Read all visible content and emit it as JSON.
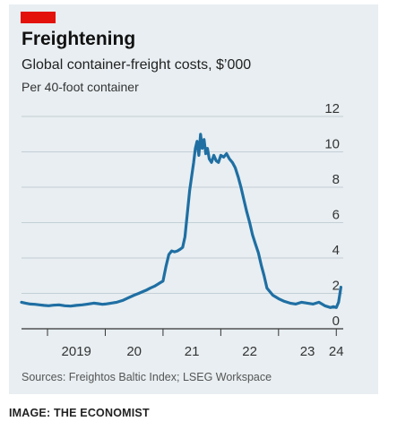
{
  "header": {
    "title": "Freightening",
    "subtitle": "Global container-freight costs, $’000",
    "unit": "Per 40-foot container"
  },
  "footer": {
    "source": "Sources: Freightos Baltic Index; LSEG Workspace",
    "credit": "IMAGE: THE ECONOMIST"
  },
  "colors": {
    "accent": "#e3120b",
    "line": "#1f6fa3",
    "background": "#e8eef1",
    "grid": "#b8c4cc"
  },
  "chart_data": {
    "type": "line",
    "title": "Freightening",
    "subtitle": "Global container-freight costs, $’000",
    "ylabel": "Per 40-foot container",
    "ylim": [
      0,
      12
    ],
    "yticks": [
      0,
      2,
      4,
      6,
      8,
      10,
      12
    ],
    "xlim": [
      2018.55,
      2024.12
    ],
    "xtick_labels": [
      "2019",
      "20",
      "21",
      "22",
      "23",
      "24"
    ],
    "xtick_label_positions": [
      2019.5,
      2020.5,
      2021.5,
      2022.5,
      2023.5,
      2024.0
    ],
    "xtick_boundaries": [
      2019,
      2020,
      2021,
      2022,
      2023,
      2024
    ],
    "grid": true,
    "series": [
      {
        "x": [
          2018.55,
          2018.62,
          2018.7,
          2018.78,
          2018.86,
          2018.94,
          2019.02,
          2019.1,
          2019.2,
          2019.3,
          2019.4,
          2019.5,
          2019.6,
          2019.7,
          2019.8,
          2019.88,
          2019.95,
          2020.0,
          2020.1,
          2020.2,
          2020.3,
          2020.4,
          2020.5,
          2020.58,
          2020.65,
          2020.72,
          2020.78,
          2020.85,
          2020.9,
          2020.95,
          2021.0,
          2021.05,
          2021.1,
          2021.15,
          2021.2,
          2021.25,
          2021.3,
          2021.34,
          2021.38,
          2021.42,
          2021.46,
          2021.5,
          2021.53,
          2021.56,
          2021.59,
          2021.62,
          2021.65,
          2021.68,
          2021.71,
          2021.74,
          2021.77,
          2021.8,
          2021.84,
          2021.88,
          2021.92,
          2021.96,
          2022.0,
          2022.05,
          2022.1,
          2022.15,
          2022.2,
          2022.25,
          2022.3,
          2022.35,
          2022.4,
          2022.45,
          2022.5,
          2022.55,
          2022.6,
          2022.65,
          2022.7,
          2022.75,
          2022.8,
          2022.9,
          2023.0,
          2023.1,
          2023.2,
          2023.3,
          2023.4,
          2023.5,
          2023.6,
          2023.7,
          2023.8,
          2023.9,
          2023.95,
          2024.0,
          2024.04,
          2024.08
        ],
        "values": [
          1.5,
          1.45,
          1.4,
          1.38,
          1.35,
          1.32,
          1.3,
          1.33,
          1.35,
          1.3,
          1.28,
          1.32,
          1.35,
          1.4,
          1.45,
          1.42,
          1.38,
          1.4,
          1.45,
          1.5,
          1.6,
          1.75,
          1.9,
          2.0,
          2.1,
          2.2,
          2.3,
          2.4,
          2.5,
          2.6,
          2.7,
          3.5,
          4.2,
          4.4,
          4.35,
          4.4,
          4.5,
          4.6,
          5.2,
          6.5,
          7.8,
          8.7,
          9.4,
          10.2,
          10.6,
          9.8,
          11.0,
          10.2,
          10.7,
          9.9,
          10.2,
          9.6,
          9.4,
          9.8,
          9.5,
          9.4,
          9.8,
          9.7,
          9.9,
          9.6,
          9.4,
          9.1,
          8.6,
          8.0,
          7.3,
          6.6,
          6.0,
          5.3,
          4.8,
          4.3,
          3.6,
          3.0,
          2.3,
          1.9,
          1.7,
          1.55,
          1.45,
          1.4,
          1.5,
          1.45,
          1.4,
          1.5,
          1.3,
          1.2,
          1.25,
          1.2,
          1.5,
          2.35
        ]
      }
    ]
  }
}
